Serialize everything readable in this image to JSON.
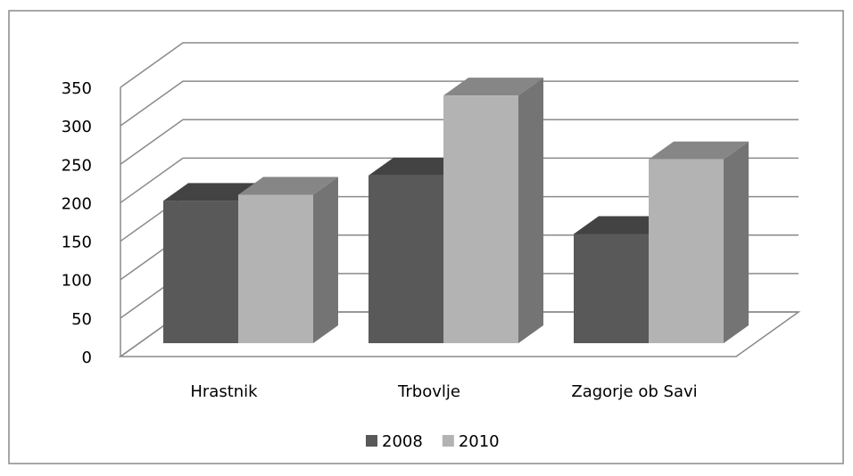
{
  "chart_data": {
    "type": "bar3d",
    "categories": [
      "Hrastnik",
      "Trbovlje",
      "Zagorje ob Savi"
    ],
    "series": [
      {
        "name": "2008",
        "color": "#595959",
        "values": [
          185,
          218,
          142
        ]
      },
      {
        "name": "2010",
        "color": "#b3b3b3",
        "values": [
          193,
          322,
          239
        ]
      }
    ],
    "ylim": [
      0,
      350
    ],
    "yticks": [
      0,
      50,
      100,
      150,
      200,
      250,
      300,
      350
    ],
    "grid": true,
    "legend": "bottom"
  }
}
